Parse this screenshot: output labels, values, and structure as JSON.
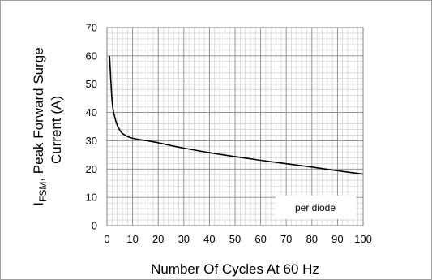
{
  "chart_data": {
    "type": "line",
    "ylabel_prefix": "I",
    "ylabel_sub": "FSM",
    "ylabel_line1": ", Peak Forward Surge",
    "ylabel_line2": "Current (A)",
    "xlabel": "Number Of Cycles At 60 Hz",
    "xlim": [
      0,
      100
    ],
    "ylim": [
      0,
      70
    ],
    "x_ticks": [
      0,
      10,
      20,
      30,
      40,
      50,
      60,
      70,
      80,
      90,
      100
    ],
    "y_ticks": [
      0,
      10,
      20,
      30,
      40,
      50,
      60,
      70
    ],
    "x_ticks_text": [
      "0",
      "10",
      "20",
      "30",
      "40",
      "50",
      "60",
      "70",
      "80",
      "90",
      "100"
    ],
    "y_ticks_text": [
      "0",
      "10",
      "20",
      "30",
      "40",
      "50",
      "60",
      "70"
    ],
    "grid": true,
    "annotation": "per diode",
    "series": [
      {
        "color": "#000000",
        "x": [
          1,
          2,
          3,
          4,
          5,
          6,
          8,
          10,
          12,
          15,
          20,
          25,
          30,
          40,
          50,
          60,
          70,
          80,
          90,
          100
        ],
        "values": [
          60,
          44,
          38.5,
          35.5,
          33.8,
          32.6,
          31.5,
          30.9,
          30.5,
          30.1,
          29.3,
          28.3,
          27.4,
          25.8,
          24.4,
          23.1,
          21.9,
          20.7,
          19.4,
          18.2
        ]
      }
    ]
  }
}
